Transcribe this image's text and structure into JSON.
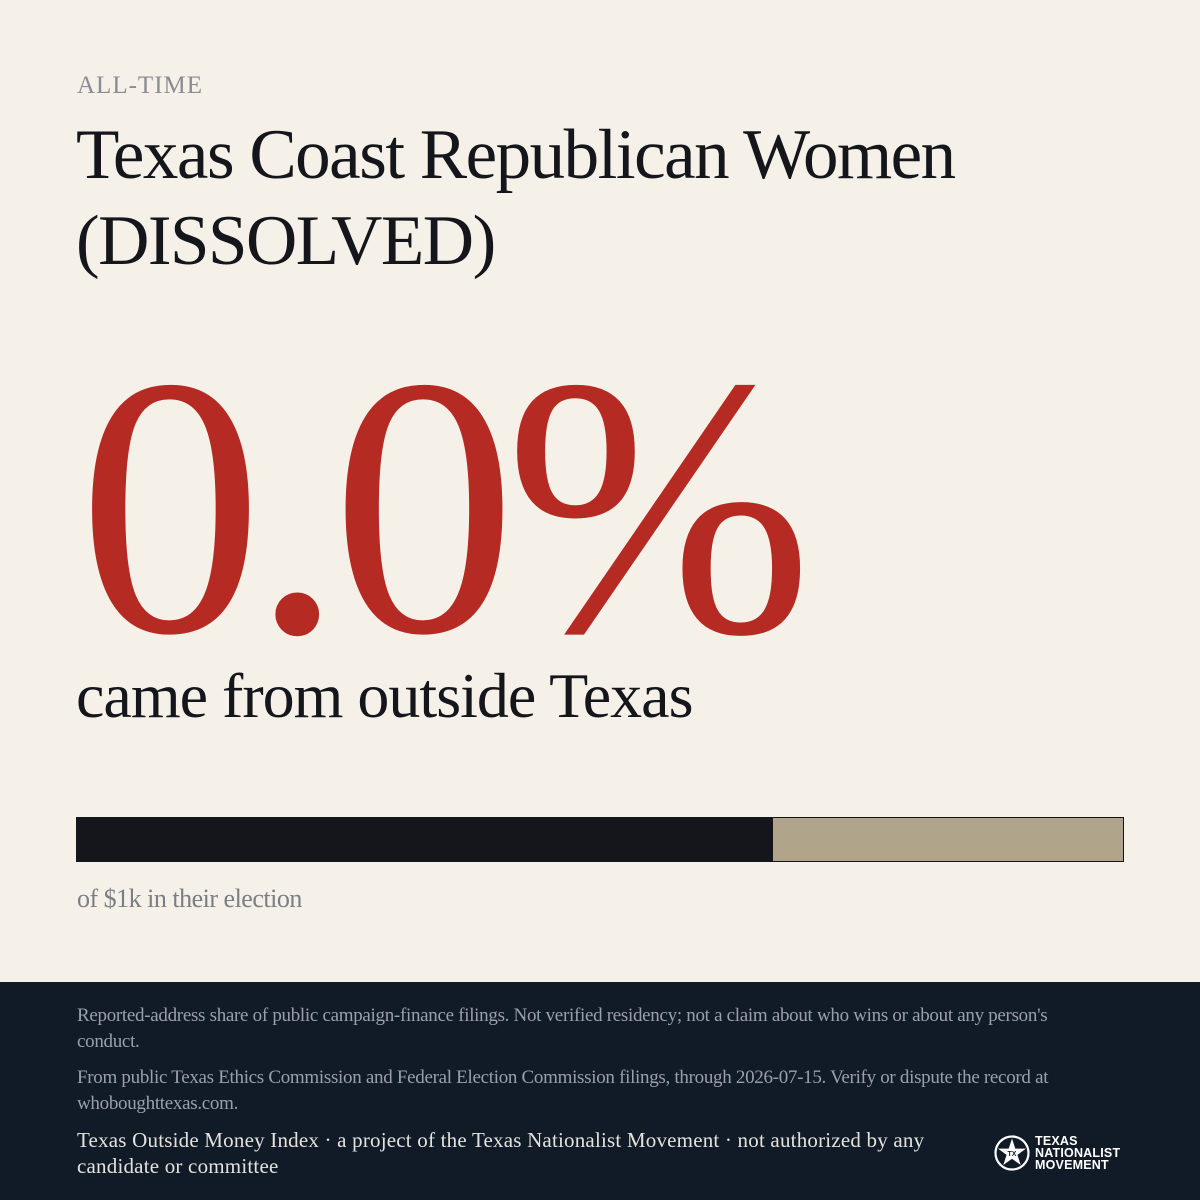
{
  "header": {
    "eyebrow": "ALL-TIME",
    "title": "Texas Coast Republican Women (DISSOLVED)"
  },
  "stat": {
    "value": "0.0%",
    "caption": "came from outside Texas"
  },
  "bar": {
    "dark_fraction": 0.665,
    "caption": "of $1k in their election",
    "dark_color": "#14161c",
    "light_color": "#b0a48a"
  },
  "footer": {
    "disclaimer_1": "Reported-address share of public campaign-finance filings. Not verified residency; not a claim about who wins or about any person's conduct.",
    "disclaimer_2": "From public Texas Ethics Commission and Federal Election Commission filings, through 2026-07-15. Verify or dispute the record at whoboughttexas.com.",
    "credit": "Texas Outside Money Index · a project of the Texas Nationalist Movement · not authorized by any candidate or committee"
  },
  "logo": {
    "icon": "tnm-star-seal-icon",
    "line_1": "TEXAS",
    "line_2": "NATIONALIST",
    "line_3": "MOVEMENT"
  },
  "colors": {
    "background": "#f5f0e8",
    "accent": "#b52a22",
    "text": "#14161c",
    "footer_bg": "#111b28"
  }
}
